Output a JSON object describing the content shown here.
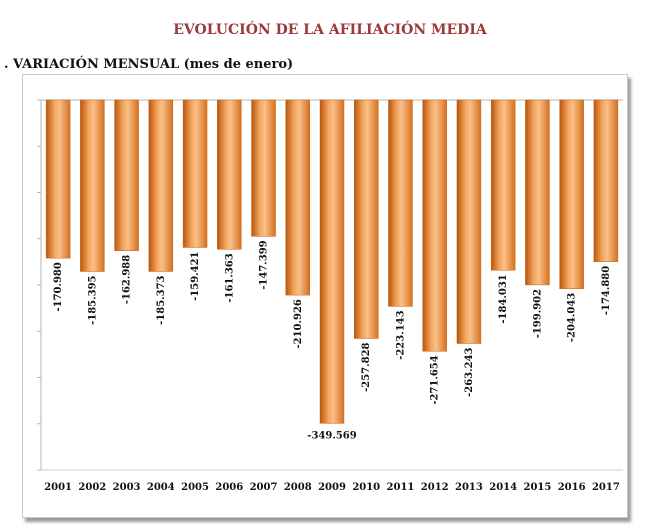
{
  "header": {
    "title": "EVOLUCIÓN DE LA AFILIACIÓN MEDIA",
    "subtitle": ". VARIACIÓN MENSUAL (mes de enero)"
  },
  "chart_data": {
    "type": "bar",
    "categories": [
      "2001",
      "2002",
      "2003",
      "2004",
      "2005",
      "2006",
      "2007",
      "2008",
      "2009",
      "2010",
      "2011",
      "2012",
      "2013",
      "2014",
      "2015",
      "2016",
      "2017"
    ],
    "values": [
      -170980,
      -185395,
      -162988,
      -185373,
      -159421,
      -161363,
      -147399,
      -210926,
      -349569,
      -257828,
      -223143,
      -271654,
      -263243,
      -184031,
      -199902,
      -204043,
      -174880
    ],
    "value_labels": [
      "-170.980",
      "-185.395",
      "-162.988",
      "-185.373",
      "-159.421",
      "-161.363",
      "-147.399",
      "-210.926",
      "-349.569",
      "-257.828",
      "-223.143",
      "-271.654",
      "-263.243",
      "-184.031",
      "-199.902",
      "-204.043",
      "-174.880"
    ],
    "title": "EVOLUCIÓN DE LA AFILIACIÓN MEDIA",
    "subtitle": ". VARIACIÓN MENSUAL (mes de enero)",
    "xlabel": "",
    "ylabel": "",
    "ylim": [
      -400000,
      0
    ],
    "grid": false,
    "legend": "none",
    "bar_color": "#e07b22",
    "bar_highlight": "#f6c79a"
  }
}
